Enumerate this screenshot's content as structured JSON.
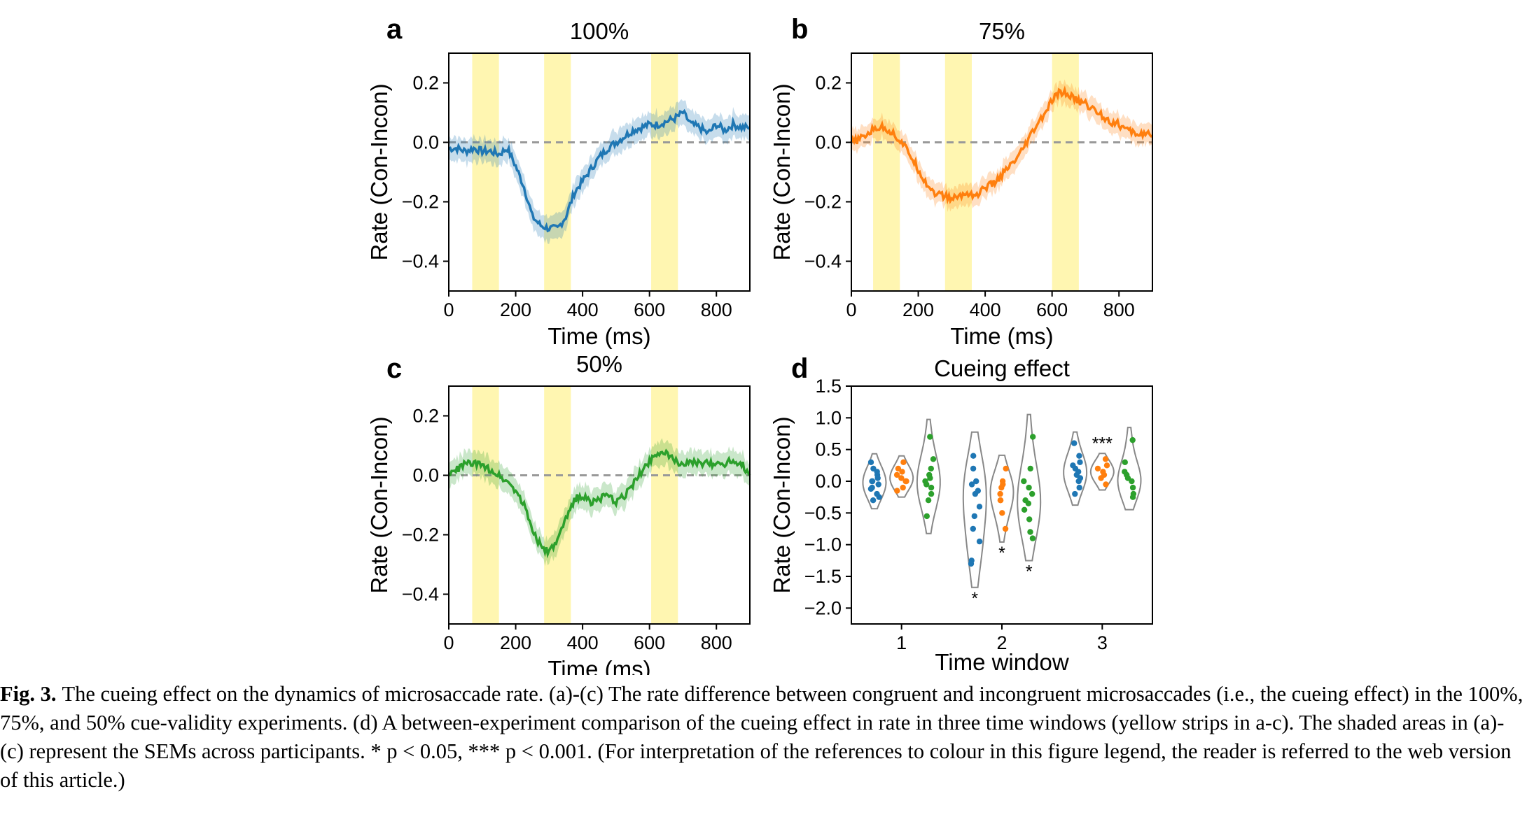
{
  "chart_data": [
    {
      "panel": "a",
      "type": "line",
      "title": "100%",
      "xlabel": "Time (ms)",
      "ylabel": "Rate (Con-Incon)",
      "xlim": [
        0,
        900
      ],
      "ylim": [
        -0.5,
        0.3
      ],
      "xticks": [
        0,
        200,
        400,
        600,
        800
      ],
      "yticks": [
        -0.4,
        -0.2,
        0.0,
        0.2
      ],
      "ytick_labels": [
        "−0.4",
        "−0.2",
        "0.0",
        "0.2"
      ],
      "reference_line": 0.0,
      "highlight_windows": [
        [
          70,
          150
        ],
        [
          285,
          365
        ],
        [
          605,
          685
        ]
      ],
      "color": "#1f77b4",
      "series": [
        {
          "x": [
            0,
            25,
            50,
            75,
            100,
            125,
            150,
            175,
            200,
            225,
            250,
            275,
            300,
            325,
            350,
            375,
            400,
            425,
            450,
            475,
            500,
            525,
            550,
            575,
            600,
            625,
            650,
            675,
            700,
            725,
            750,
            775,
            800,
            825,
            850,
            875,
            900
          ],
          "y": [
            -0.02,
            -0.02,
            -0.03,
            -0.02,
            -0.03,
            -0.03,
            -0.04,
            -0.02,
            -0.08,
            -0.15,
            -0.25,
            -0.28,
            -0.29,
            -0.29,
            -0.25,
            -0.17,
            -0.13,
            -0.09,
            -0.05,
            -0.02,
            0.0,
            0.02,
            0.04,
            0.05,
            0.06,
            0.06,
            0.07,
            0.08,
            0.1,
            0.06,
            0.05,
            0.03,
            0.06,
            0.04,
            0.06,
            0.05,
            0.05
          ],
          "sem": 0.04
        }
      ]
    },
    {
      "panel": "b",
      "type": "line",
      "title": "75%",
      "xlabel": "Time (ms)",
      "ylabel": "Rate (Con-Incon)",
      "xlim": [
        0,
        900
      ],
      "ylim": [
        -0.5,
        0.3
      ],
      "xticks": [
        0,
        200,
        400,
        600,
        800
      ],
      "yticks": [
        -0.4,
        -0.2,
        0.0,
        0.2
      ],
      "ytick_labels": [
        "−0.4",
        "−0.2",
        "0.0",
        "0.2"
      ],
      "reference_line": 0.0,
      "highlight_windows": [
        [
          65,
          145
        ],
        [
          280,
          360
        ],
        [
          600,
          680
        ]
      ],
      "color": "#ff7f0e",
      "series": [
        {
          "x": [
            0,
            25,
            50,
            75,
            100,
            125,
            150,
            175,
            200,
            225,
            250,
            275,
            300,
            325,
            350,
            375,
            400,
            425,
            450,
            475,
            500,
            525,
            550,
            575,
            600,
            625,
            650,
            675,
            700,
            725,
            750,
            775,
            800,
            825,
            850,
            875,
            900
          ],
          "y": [
            0.0,
            0.01,
            0.03,
            0.05,
            0.05,
            0.03,
            0.0,
            -0.04,
            -0.09,
            -0.14,
            -0.17,
            -0.18,
            -0.19,
            -0.18,
            -0.17,
            -0.18,
            -0.15,
            -0.14,
            -0.11,
            -0.08,
            -0.05,
            0.0,
            0.05,
            0.09,
            0.14,
            0.17,
            0.16,
            0.14,
            0.13,
            0.11,
            0.09,
            0.07,
            0.06,
            0.04,
            0.03,
            0.03,
            0.02
          ],
          "sem": 0.035
        }
      ]
    },
    {
      "panel": "c",
      "type": "line",
      "title": "50%",
      "xlabel": "Time (ms)",
      "ylabel": "Rate (Con-Incon)",
      "xlim": [
        0,
        900
      ],
      "ylim": [
        -0.5,
        0.3
      ],
      "xticks": [
        0,
        200,
        400,
        600,
        800
      ],
      "yticks": [
        -0.4,
        -0.2,
        0.0,
        0.2
      ],
      "ytick_labels": [
        "−0.4",
        "−0.2",
        "0.0",
        "0.2"
      ],
      "reference_line": 0.0,
      "highlight_windows": [
        [
          70,
          150
        ],
        [
          285,
          365
        ],
        [
          605,
          685
        ]
      ],
      "color": "#2ca02c",
      "series": [
        {
          "x": [
            0,
            25,
            50,
            75,
            100,
            125,
            150,
            175,
            200,
            225,
            250,
            275,
            300,
            325,
            350,
            375,
            400,
            425,
            450,
            475,
            500,
            525,
            550,
            575,
            600,
            625,
            650,
            675,
            700,
            725,
            750,
            775,
            800,
            825,
            850,
            875,
            900
          ],
          "y": [
            0.0,
            0.02,
            0.04,
            0.04,
            0.03,
            0.02,
            0.0,
            -0.02,
            -0.05,
            -0.1,
            -0.18,
            -0.24,
            -0.26,
            -0.22,
            -0.15,
            -0.08,
            -0.07,
            -0.09,
            -0.08,
            -0.07,
            -0.09,
            -0.07,
            -0.03,
            0.01,
            0.05,
            0.08,
            0.07,
            0.05,
            0.04,
            0.04,
            0.04,
            0.04,
            0.04,
            0.04,
            0.05,
            0.04,
            0.0
          ],
          "sem": 0.04
        }
      ]
    },
    {
      "panel": "d",
      "type": "scatter",
      "subtype": "violin",
      "title": "Cueing effect",
      "xlabel": "Time window",
      "ylabel": "Rate (Con-Incon)",
      "xlim": [
        0.5,
        3.5
      ],
      "ylim": [
        -2.25,
        1.5
      ],
      "xticks": [
        1,
        2,
        3
      ],
      "xtick_labels": [
        "1",
        "2",
        "3"
      ],
      "yticks": [
        -2.0,
        -1.5,
        -1.0,
        -0.5,
        0.0,
        0.5,
        1.0,
        1.5
      ],
      "ytick_labels": [
        "−2.0",
        "−1.5",
        "−1.0",
        "−0.5",
        "0.0",
        "0.5",
        "1.0",
        "1.5"
      ],
      "offsets": [
        -0.27,
        0.0,
        0.27
      ],
      "violin_halfwidth": 0.115,
      "series": [
        {
          "color": "#1f77b4",
          "windows": [
            {
              "window": 1,
              "values": [
                0.3,
                0.2,
                0.1,
                0.05,
                0.0,
                -0.05,
                -0.1,
                -0.12,
                -0.2,
                -0.25,
                -0.3,
                0.15,
                0.0
              ],
              "significance": ""
            },
            {
              "window": 2,
              "values": [
                0.4,
                0.2,
                0.0,
                -0.2,
                -0.4,
                -0.55,
                -0.75,
                -0.95,
                -1.25,
                -1.3,
                -0.15,
                -0.05
              ],
              "significance": "*"
            },
            {
              "window": 3,
              "values": [
                0.6,
                0.4,
                0.3,
                0.2,
                0.1,
                0.0,
                -0.1,
                -0.2,
                0.25,
                0.05,
                0.15
              ],
              "significance": ""
            }
          ]
        },
        {
          "color": "#ff7f0e",
          "windows": [
            {
              "window": 1,
              "values": [
                0.3,
                0.2,
                0.1,
                0.05,
                0.0,
                -0.1,
                -0.15,
                0.15,
                0.0
              ],
              "significance": ""
            },
            {
              "window": 2,
              "values": [
                0.2,
                0.0,
                -0.1,
                -0.2,
                -0.3,
                -0.5,
                -0.75,
                -0.3,
                -0.05
              ],
              "significance": "*"
            },
            {
              "window": 3,
              "values": [
                0.35,
                0.25,
                0.2,
                0.1,
                0.15,
                0.05,
                -0.05
              ],
              "significance": "***"
            }
          ]
        },
        {
          "color": "#2ca02c",
          "windows": [
            {
              "window": 1,
              "values": [
                0.7,
                0.35,
                0.2,
                0.1,
                0.0,
                -0.1,
                -0.2,
                -0.3,
                -0.55,
                0.05,
                -0.05
              ],
              "significance": ""
            },
            {
              "window": 2,
              "values": [
                0.7,
                0.2,
                0.0,
                -0.2,
                -0.3,
                -0.45,
                -0.6,
                -0.8,
                -0.9,
                -0.1,
                -0.35
              ],
              "significance": "*"
            },
            {
              "window": 3,
              "values": [
                0.65,
                0.3,
                0.15,
                0.05,
                0.0,
                -0.1,
                -0.2,
                -0.25,
                0.1
              ],
              "significance": ""
            }
          ]
        }
      ]
    }
  ],
  "panel_letters": [
    "a",
    "b",
    "c",
    "d"
  ],
  "highlight_color": "#fff5a8",
  "caption": {
    "label": "Fig. 3.",
    "text": "The cueing effect on the dynamics of microsaccade rate. (a)-(c) The rate difference between congruent and incongruent microsaccades (i.e., the cueing effect) in the 100%, 75%, and 50% cue-validity experiments. (d) A between-experiment comparison of the cueing effect in rate in three time windows (yellow strips in a-c). The shaded areas in (a)-(c) represent the SEMs across participants. * p < 0.05, *** p < 0.001. (For interpretation of the references to colour in this figure legend, the reader is referred to the web version of this article.)"
  }
}
